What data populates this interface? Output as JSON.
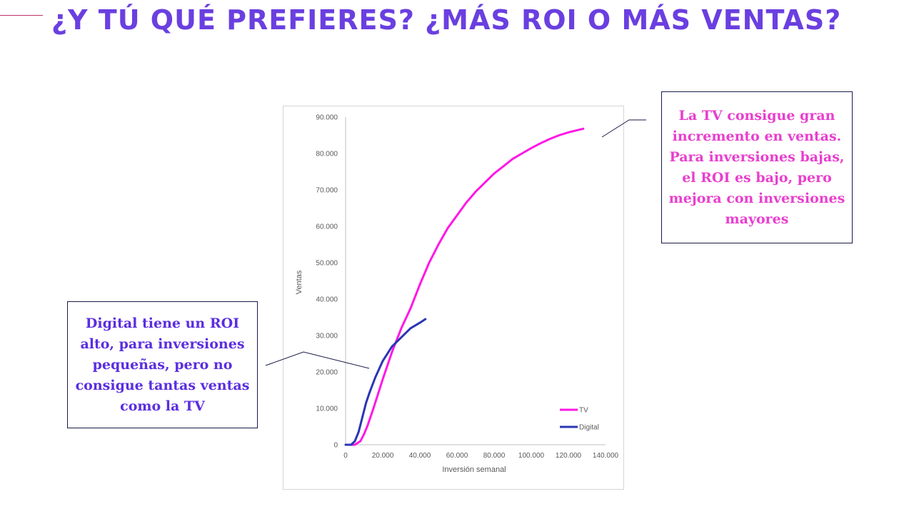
{
  "slide": {
    "title": "¿Y TÚ QUÉ PREFIERES? ¿MÁS ROI O MÁS VENTAS?"
  },
  "colors": {
    "title": "#6a3fe0",
    "tv": "#ff17e6",
    "digital": "#2a36b4",
    "callout_tv_text": "#e83fce",
    "callout_digital_text": "#5a2ee0"
  },
  "callouts": {
    "tv": "La TV consigue gran incremento en ventas. Para inversiones bajas, el ROI es bajo, pero mejora con inversiones mayores",
    "digital": "Digital tiene un ROI alto, para inversiones pequeñas, pero no consigue tantas ventas como la TV"
  },
  "chart_data": {
    "type": "line",
    "xlabel": "Inversión semanal",
    "ylabel": "Ventas",
    "xlim": [
      0,
      140000
    ],
    "ylim": [
      0,
      90000
    ],
    "x_ticks": [
      "0",
      "20.000",
      "40.000",
      "60.000",
      "80.000",
      "100.000",
      "120.000",
      "140.000"
    ],
    "y_ticks": [
      "0",
      "10.000",
      "20.000",
      "30.000",
      "40.000",
      "50.000",
      "60.000",
      "70.000",
      "80.000",
      "90.000"
    ],
    "legend_position": "bottom-right",
    "grid": false,
    "series": [
      {
        "name": "TV",
        "color": "#ff17e6",
        "points": [
          [
            0,
            0
          ],
          [
            5000,
            0
          ],
          [
            8000,
            1000
          ],
          [
            10000,
            3000
          ],
          [
            12000,
            5500
          ],
          [
            15000,
            10000
          ],
          [
            20000,
            18000
          ],
          [
            25000,
            25500
          ],
          [
            30000,
            32000
          ],
          [
            35000,
            37500
          ],
          [
            40000,
            44000
          ],
          [
            45000,
            50000
          ],
          [
            50000,
            55000
          ],
          [
            55000,
            59500
          ],
          [
            60000,
            63000
          ],
          [
            65000,
            66500
          ],
          [
            70000,
            69500
          ],
          [
            75000,
            72000
          ],
          [
            80000,
            74500
          ],
          [
            85000,
            76500
          ],
          [
            90000,
            78500
          ],
          [
            95000,
            80000
          ],
          [
            100000,
            81500
          ],
          [
            105000,
            82800
          ],
          [
            110000,
            84000
          ],
          [
            115000,
            85000
          ],
          [
            120000,
            85800
          ],
          [
            128000,
            86800
          ]
        ]
      },
      {
        "name": "Digital",
        "color": "#2a36b4",
        "points": [
          [
            0,
            0
          ],
          [
            3000,
            0
          ],
          [
            5000,
            1000
          ],
          [
            7000,
            3500
          ],
          [
            9000,
            7500
          ],
          [
            11000,
            11500
          ],
          [
            13000,
            14500
          ],
          [
            16000,
            18500
          ],
          [
            20000,
            23000
          ],
          [
            25000,
            27000
          ],
          [
            30000,
            29500
          ],
          [
            35000,
            32000
          ],
          [
            40000,
            33500
          ],
          [
            43000,
            34500
          ]
        ]
      }
    ]
  }
}
